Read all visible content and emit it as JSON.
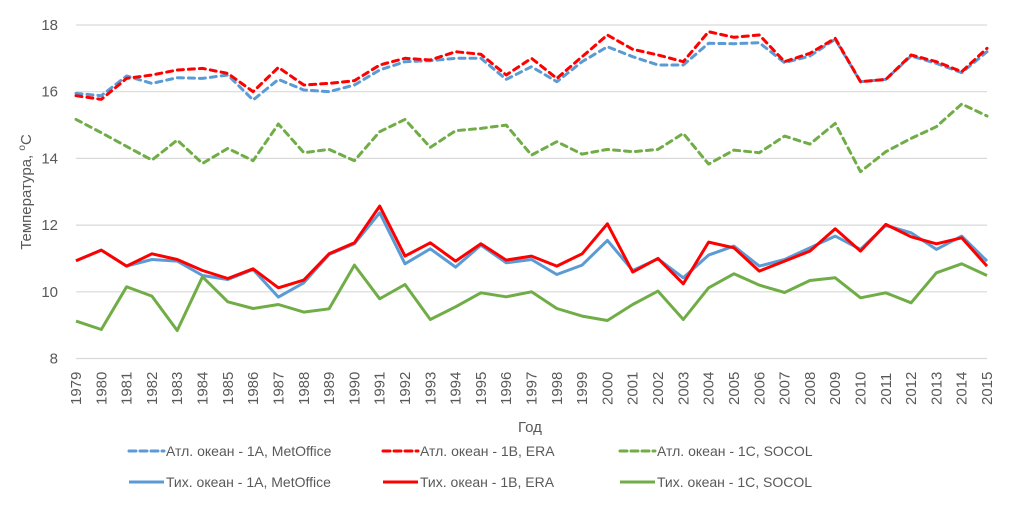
{
  "chart_data": {
    "type": "line",
    "title": "",
    "xlabel": "Год",
    "ylabel": "Температура, ",
    "ylabel_sup": "o",
    "ylabel_unit": "C",
    "ylim": [
      8,
      18
    ],
    "yticks": [
      "8",
      "10",
      "12",
      "14",
      "16",
      "18"
    ],
    "ytick_values": [
      8,
      10,
      12,
      14,
      16,
      18
    ],
    "grid": true,
    "legend_position": "bottom",
    "x": [
      "1979",
      "1980",
      "1981",
      "1982",
      "1983",
      "1984",
      "1985",
      "1986",
      "1987",
      "1988",
      "1989",
      "1990",
      "1991",
      "1992",
      "1993",
      "1994",
      "1995",
      "1996",
      "1997",
      "1998",
      "1999",
      "2000",
      "2001",
      "2002",
      "2003",
      "2004",
      "2005",
      "2006",
      "2007",
      "2008",
      "2009",
      "2010",
      "2011",
      "2012",
      "2013",
      "2014",
      "2015"
    ],
    "series": [
      {
        "name": "Атл. океан - 1A, MetOffice",
        "color": "#5b9bd5",
        "dashed": true,
        "values": [
          15.95,
          15.88,
          16.47,
          16.25,
          16.42,
          16.4,
          16.5,
          15.75,
          16.37,
          16.05,
          16.0,
          16.2,
          16.65,
          16.9,
          16.93,
          17.0,
          17.0,
          16.37,
          16.75,
          16.3,
          16.9,
          17.35,
          17.05,
          16.8,
          16.8,
          17.45,
          17.44,
          17.47,
          16.87,
          17.07,
          17.57,
          16.3,
          16.37,
          17.07,
          16.85,
          16.57,
          17.2
        ]
      },
      {
        "name": "Атл. океан - 1B, ERA",
        "color": "#ff0000",
        "dashed": true,
        "values": [
          15.88,
          15.77,
          16.4,
          16.5,
          16.65,
          16.7,
          16.55,
          16.0,
          16.73,
          16.2,
          16.25,
          16.33,
          16.8,
          17.0,
          16.95,
          17.2,
          17.12,
          16.5,
          17.0,
          16.4,
          17.05,
          17.7,
          17.27,
          17.1,
          16.9,
          17.8,
          17.63,
          17.7,
          16.9,
          17.15,
          17.6,
          16.3,
          16.37,
          17.1,
          16.9,
          16.6,
          17.3
        ]
      },
      {
        "name": "Атл. океан - 1C, SOCOL",
        "color": "#70ad47",
        "dashed": true,
        "values": [
          15.17,
          14.77,
          14.36,
          13.95,
          14.55,
          13.85,
          14.3,
          13.93,
          15.03,
          14.17,
          14.27,
          13.93,
          14.8,
          15.17,
          14.33,
          14.83,
          14.9,
          15.0,
          14.1,
          14.5,
          14.13,
          14.27,
          14.2,
          14.27,
          14.75,
          13.83,
          14.25,
          14.17,
          14.67,
          14.43,
          15.05,
          13.6,
          14.2,
          14.6,
          14.95,
          15.63,
          15.27
        ]
      },
      {
        "name": "Тих. океан - 1A, MetOffice",
        "color": "#5b9bd5",
        "dashed": false,
        "values": [
          10.93,
          11.25,
          10.77,
          10.97,
          10.92,
          10.49,
          10.37,
          10.67,
          9.84,
          10.27,
          11.12,
          11.44,
          12.37,
          10.84,
          11.29,
          10.74,
          11.4,
          10.87,
          10.97,
          10.52,
          10.8,
          11.54,
          10.64,
          10.99,
          10.42,
          11.1,
          11.37,
          10.77,
          10.97,
          11.32,
          11.67,
          11.27,
          11.99,
          11.77,
          11.27,
          11.67,
          10.92
        ]
      },
      {
        "name": "Тих. океан - 1B, ERA",
        "color": "#ff0000",
        "dashed": false,
        "values": [
          10.93,
          11.25,
          10.77,
          11.14,
          10.97,
          10.64,
          10.4,
          10.69,
          10.12,
          10.35,
          11.14,
          11.47,
          12.57,
          11.07,
          11.47,
          10.92,
          11.44,
          10.95,
          11.07,
          10.77,
          11.14,
          12.04,
          10.59,
          11.0,
          10.24,
          11.49,
          11.32,
          10.62,
          10.92,
          11.22,
          11.89,
          11.22,
          12.02,
          11.65,
          11.44,
          11.62,
          10.77
        ]
      },
      {
        "name": "Тих. океан - 1C, SOCOL",
        "color": "#70ad47",
        "dashed": false,
        "values": [
          9.12,
          8.87,
          10.15,
          9.87,
          8.84,
          10.45,
          9.7,
          9.5,
          9.62,
          9.39,
          9.49,
          10.8,
          9.79,
          10.22,
          9.17,
          9.55,
          9.97,
          9.85,
          10.0,
          9.5,
          9.27,
          9.14,
          9.62,
          10.02,
          9.17,
          10.12,
          10.54,
          10.2,
          9.98,
          10.34,
          10.42,
          9.82,
          9.97,
          9.67,
          10.57,
          10.84,
          10.49
        ]
      }
    ]
  }
}
